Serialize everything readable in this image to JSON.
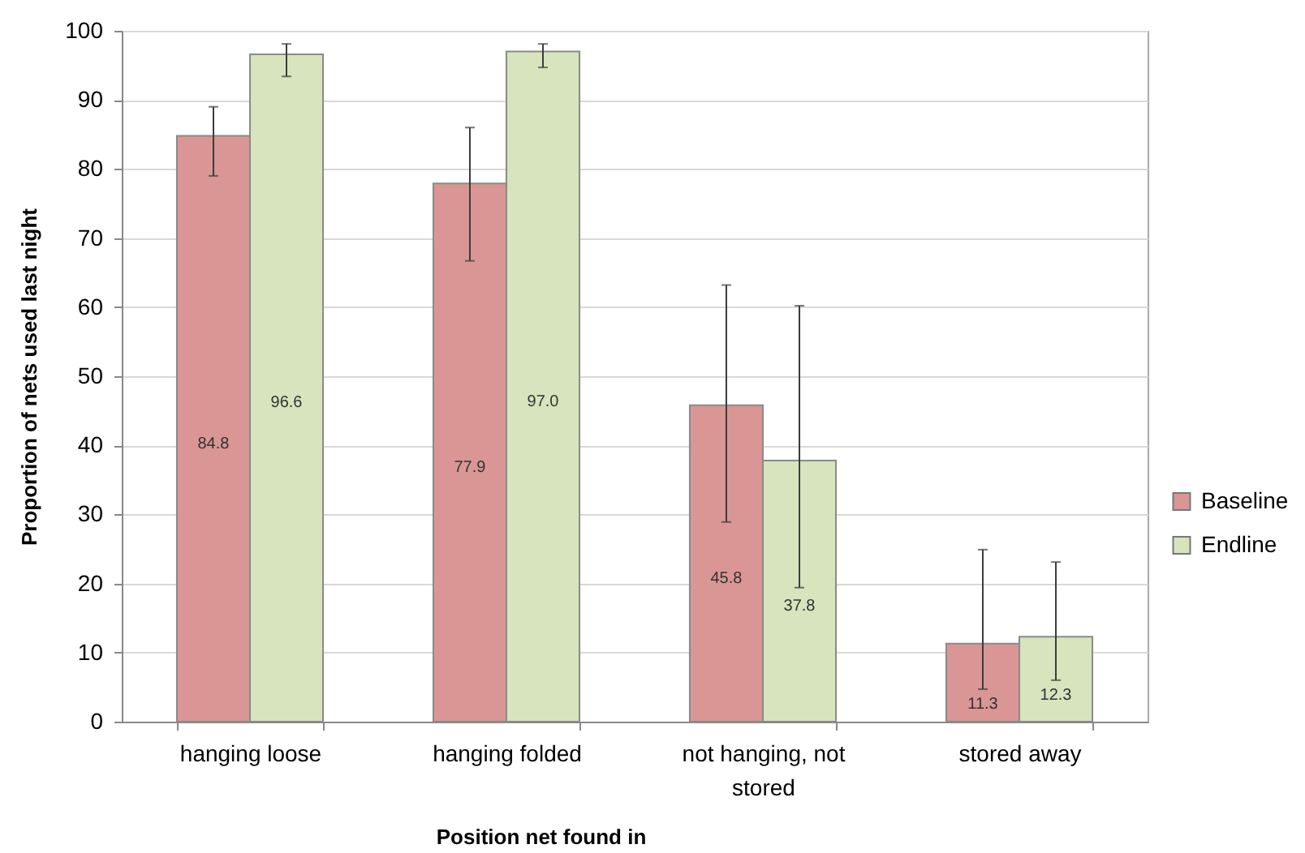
{
  "chart_data": {
    "type": "bar",
    "xlabel": "Position net found in",
    "ylabel": "Proportion of nets used last night",
    "categories": [
      "hanging loose",
      "hanging folded",
      "not hanging, not stored",
      "stored away"
    ],
    "series": [
      {
        "name": "Baseline",
        "color": "#d99694",
        "values": [
          84.8,
          77.9,
          45.8,
          11.3
        ],
        "value_labels": [
          "84.8",
          "77.9",
          "45.8",
          "11.3"
        ],
        "errors": [
          [
            79,
            89
          ],
          [
            66.7,
            86
          ],
          [
            28.9,
            63.2
          ],
          [
            4.7,
            24.9
          ]
        ]
      },
      {
        "name": "Endline",
        "color": "#d7e4bd",
        "values": [
          96.6,
          97.0,
          37.8,
          12.3
        ],
        "value_labels": [
          "96.6",
          "97.0",
          "37.8",
          "12.3"
        ],
        "errors": [
          [
            93.4,
            98.1
          ],
          [
            94.7,
            98.1
          ],
          [
            19.4,
            60.2
          ],
          [
            6.0,
            23.1
          ]
        ]
      }
    ],
    "ylim": [
      0,
      100
    ],
    "yticks": [
      0,
      10,
      20,
      30,
      40,
      50,
      60,
      70,
      80,
      90,
      100
    ],
    "grid": "y",
    "legend": "right"
  }
}
